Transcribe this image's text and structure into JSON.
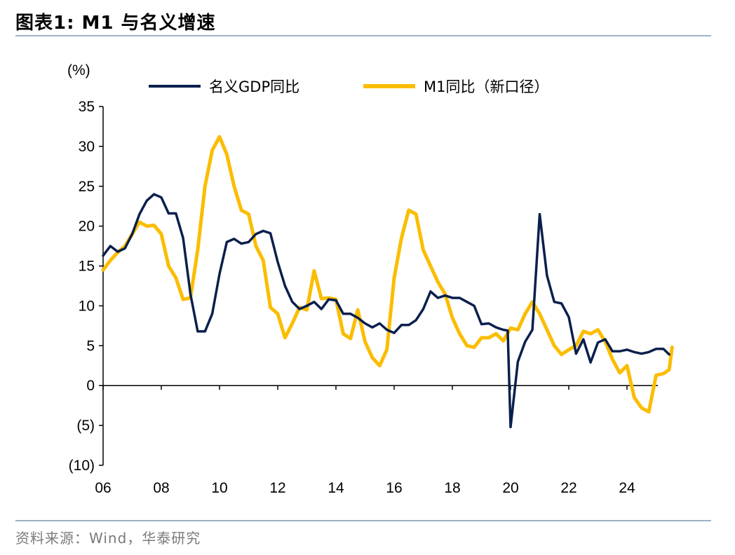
{
  "header": {
    "title": "图表1:  M1 与名义增速"
  },
  "footer": {
    "source": "资料来源：Wind，华泰研究"
  },
  "chart_data": {
    "type": "line",
    "ylabel": "(%)",
    "ylim": [
      -10,
      35
    ],
    "xlim": [
      2006,
      2025.6
    ],
    "yticks": [
      35,
      30,
      25,
      20,
      15,
      10,
      5,
      0,
      -5,
      -10
    ],
    "ytick_labels": [
      "35",
      "30",
      "25",
      "20",
      "15",
      "10",
      "5",
      "0",
      "(5)",
      "(10)"
    ],
    "xticks": [
      2006,
      2008,
      2010,
      2012,
      2014,
      2016,
      2018,
      2020,
      2022,
      2024
    ],
    "xtick_labels": [
      "06",
      "08",
      "10",
      "12",
      "14",
      "16",
      "18",
      "20",
      "22",
      "24"
    ],
    "legend_position": "top",
    "series": [
      {
        "name": "名义GDP同比",
        "color": "#0b1f4d",
        "points": [
          [
            2006.0,
            16.3
          ],
          [
            2006.25,
            17.5
          ],
          [
            2006.5,
            16.8
          ],
          [
            2006.75,
            17.2
          ],
          [
            2007.0,
            19.0
          ],
          [
            2007.25,
            21.5
          ],
          [
            2007.5,
            23.2
          ],
          [
            2007.75,
            24.0
          ],
          [
            2008.0,
            23.6
          ],
          [
            2008.25,
            21.6
          ],
          [
            2008.5,
            21.6
          ],
          [
            2008.75,
            18.5
          ],
          [
            2009.0,
            11.5
          ],
          [
            2009.25,
            6.8
          ],
          [
            2009.5,
            6.8
          ],
          [
            2009.75,
            9.0
          ],
          [
            2010.0,
            14.0
          ],
          [
            2010.25,
            18.0
          ],
          [
            2010.5,
            18.4
          ],
          [
            2010.75,
            17.8
          ],
          [
            2011.0,
            18.0
          ],
          [
            2011.25,
            19.0
          ],
          [
            2011.5,
            19.4
          ],
          [
            2011.75,
            19.1
          ],
          [
            2012.0,
            15.5
          ],
          [
            2012.25,
            12.5
          ],
          [
            2012.5,
            10.5
          ],
          [
            2012.75,
            9.6
          ],
          [
            2013.0,
            10.0
          ],
          [
            2013.25,
            10.5
          ],
          [
            2013.5,
            9.6
          ],
          [
            2013.75,
            10.8
          ],
          [
            2014.0,
            10.7
          ],
          [
            2014.25,
            9.0
          ],
          [
            2014.5,
            9.0
          ],
          [
            2014.75,
            8.5
          ],
          [
            2015.0,
            7.8
          ],
          [
            2015.25,
            7.3
          ],
          [
            2015.5,
            7.8
          ],
          [
            2015.75,
            7.0
          ],
          [
            2016.0,
            6.6
          ],
          [
            2016.25,
            7.6
          ],
          [
            2016.5,
            7.6
          ],
          [
            2016.75,
            8.2
          ],
          [
            2017.0,
            9.6
          ],
          [
            2017.25,
            11.8
          ],
          [
            2017.5,
            11.0
          ],
          [
            2017.75,
            11.3
          ],
          [
            2018.0,
            11.0
          ],
          [
            2018.25,
            11.0
          ],
          [
            2018.5,
            10.5
          ],
          [
            2018.75,
            10.0
          ],
          [
            2019.0,
            7.7
          ],
          [
            2019.25,
            7.8
          ],
          [
            2019.5,
            7.3
          ],
          [
            2019.75,
            7.0
          ],
          [
            2019.9,
            6.9
          ],
          [
            2020.0,
            -5.2
          ],
          [
            2020.25,
            3.0
          ],
          [
            2020.5,
            5.5
          ],
          [
            2020.75,
            7.0
          ],
          [
            2021.0,
            21.5
          ],
          [
            2021.25,
            13.8
          ],
          [
            2021.5,
            10.5
          ],
          [
            2021.75,
            10.3
          ],
          [
            2022.0,
            8.6
          ],
          [
            2022.25,
            4.0
          ],
          [
            2022.5,
            5.8
          ],
          [
            2022.75,
            2.9
          ],
          [
            2023.0,
            5.4
          ],
          [
            2023.25,
            5.8
          ],
          [
            2023.5,
            4.3
          ],
          [
            2023.75,
            4.3
          ],
          [
            2024.0,
            4.5
          ],
          [
            2024.25,
            4.2
          ],
          [
            2024.5,
            4.0
          ],
          [
            2024.75,
            4.2
          ],
          [
            2025.0,
            4.6
          ],
          [
            2025.25,
            4.6
          ],
          [
            2025.45,
            3.9
          ]
        ]
      },
      {
        "name": "M1同比（新口径）",
        "color": "#fbbd00",
        "points": [
          [
            2006.0,
            14.5
          ],
          [
            2006.25,
            15.7
          ],
          [
            2006.5,
            16.7
          ],
          [
            2006.75,
            17.5
          ],
          [
            2007.0,
            19.0
          ],
          [
            2007.25,
            20.5
          ],
          [
            2007.5,
            20.0
          ],
          [
            2007.75,
            20.1
          ],
          [
            2008.0,
            19.0
          ],
          [
            2008.25,
            15.0
          ],
          [
            2008.5,
            13.5
          ],
          [
            2008.75,
            10.8
          ],
          [
            2009.0,
            11.0
          ],
          [
            2009.25,
            17.0
          ],
          [
            2009.5,
            25.0
          ],
          [
            2009.75,
            29.5
          ],
          [
            2010.0,
            31.2
          ],
          [
            2010.25,
            29.0
          ],
          [
            2010.5,
            25.0
          ],
          [
            2010.75,
            22.0
          ],
          [
            2011.0,
            21.5
          ],
          [
            2011.25,
            17.5
          ],
          [
            2011.5,
            15.7
          ],
          [
            2011.75,
            9.8
          ],
          [
            2012.0,
            9.0
          ],
          [
            2012.25,
            6.0
          ],
          [
            2012.5,
            7.8
          ],
          [
            2012.75,
            9.8
          ],
          [
            2013.0,
            9.5
          ],
          [
            2013.25,
            14.4
          ],
          [
            2013.5,
            10.9
          ],
          [
            2013.75,
            11.0
          ],
          [
            2014.0,
            10.8
          ],
          [
            2014.25,
            6.5
          ],
          [
            2014.5,
            5.9
          ],
          [
            2014.75,
            9.5
          ],
          [
            2015.0,
            5.5
          ],
          [
            2015.25,
            3.5
          ],
          [
            2015.5,
            2.5
          ],
          [
            2015.75,
            4.5
          ],
          [
            2016.0,
            13.5
          ],
          [
            2016.25,
            18.5
          ],
          [
            2016.5,
            22.0
          ],
          [
            2016.75,
            21.5
          ],
          [
            2017.0,
            17.0
          ],
          [
            2017.25,
            15.0
          ],
          [
            2017.5,
            13.0
          ],
          [
            2017.75,
            11.5
          ],
          [
            2018.0,
            8.5
          ],
          [
            2018.25,
            6.5
          ],
          [
            2018.5,
            5.0
          ],
          [
            2018.75,
            4.8
          ],
          [
            2019.0,
            6.0
          ],
          [
            2019.25,
            6.0
          ],
          [
            2019.5,
            6.5
          ],
          [
            2019.75,
            5.6
          ],
          [
            2020.0,
            7.2
          ],
          [
            2020.25,
            7.0
          ],
          [
            2020.5,
            9.0
          ],
          [
            2020.75,
            10.5
          ],
          [
            2021.0,
            9.0
          ],
          [
            2021.25,
            7.0
          ],
          [
            2021.5,
            5.0
          ],
          [
            2021.75,
            3.9
          ],
          [
            2022.0,
            4.5
          ],
          [
            2022.25,
            5.0
          ],
          [
            2022.5,
            6.8
          ],
          [
            2022.75,
            6.5
          ],
          [
            2023.0,
            7.0
          ],
          [
            2023.25,
            5.5
          ],
          [
            2023.5,
            3.3
          ],
          [
            2023.75,
            1.6
          ],
          [
            2024.0,
            2.5
          ],
          [
            2024.25,
            -1.5
          ],
          [
            2024.5,
            -2.8
          ],
          [
            2024.75,
            -3.3
          ],
          [
            2025.0,
            1.3
          ],
          [
            2025.25,
            1.5
          ],
          [
            2025.45,
            2.0
          ],
          [
            2025.55,
            4.8
          ]
        ]
      }
    ]
  }
}
